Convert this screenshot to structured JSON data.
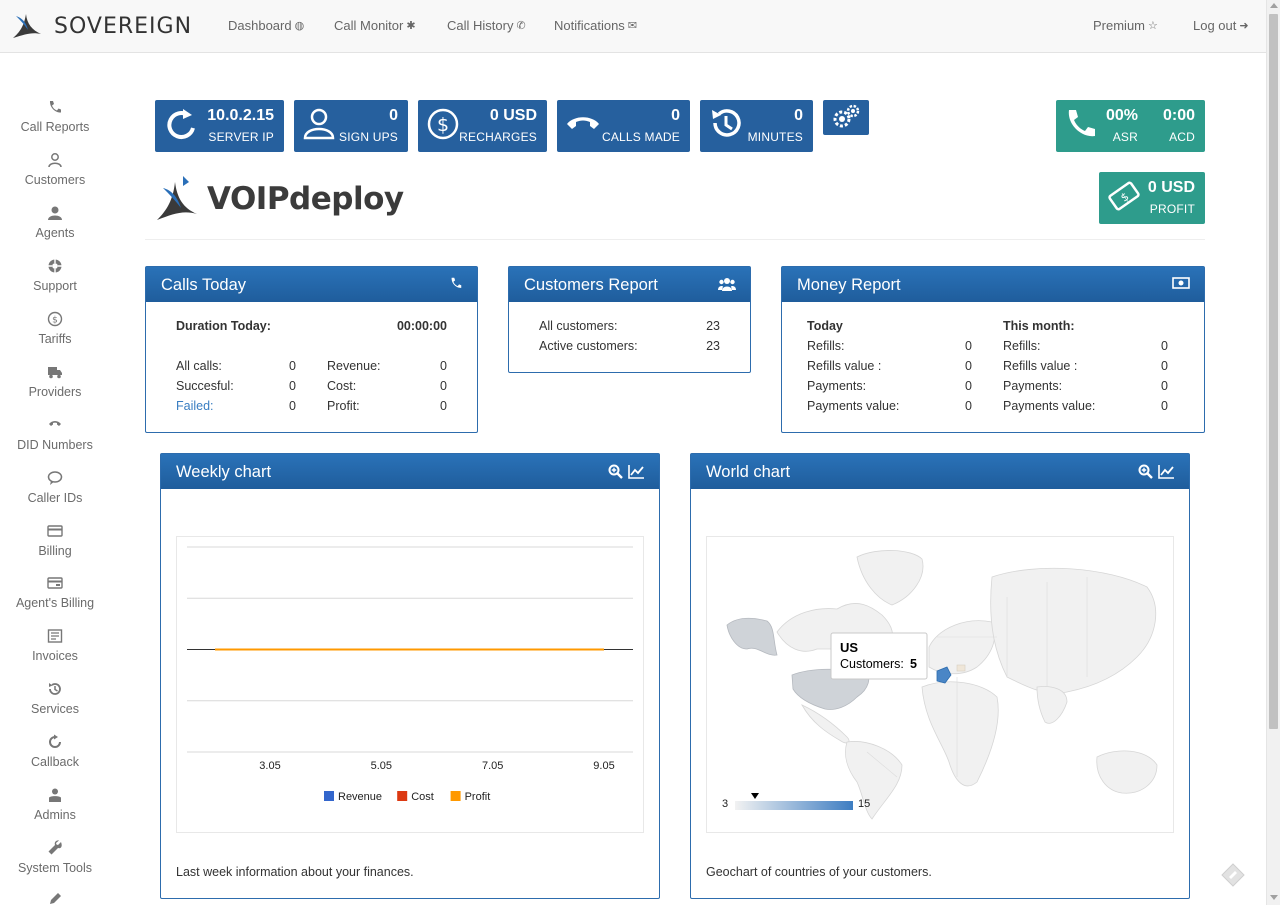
{
  "brand": {
    "name": "SOVEREIGN"
  },
  "nav": {
    "dashboard": "Dashboard",
    "call_monitor": "Call Monitor",
    "call_history": "Call History",
    "notifications": "Notifications",
    "premium": "Premium",
    "logout": "Log out"
  },
  "sidebar": {
    "items": [
      {
        "label": "Call Reports",
        "icon": "phone-icon"
      },
      {
        "label": "Customers",
        "icon": "user-outline-icon"
      },
      {
        "label": "Agents",
        "icon": "agent-icon"
      },
      {
        "label": "Support",
        "icon": "lifebuoy-icon"
      },
      {
        "label": "Tariffs",
        "icon": "dollar-circle-icon"
      },
      {
        "label": "Providers",
        "icon": "truck-icon"
      },
      {
        "label": "DID Numbers",
        "icon": "phone-handset-icon"
      },
      {
        "label": "Caller IDs",
        "icon": "speech-bubble-icon"
      },
      {
        "label": "Billing",
        "icon": "credit-card-icon"
      },
      {
        "label": "Agent's Billing",
        "icon": "agent-card-icon"
      },
      {
        "label": "Invoices",
        "icon": "invoice-icon"
      },
      {
        "label": "Services",
        "icon": "history-icon"
      },
      {
        "label": "Callback",
        "icon": "refresh-icon"
      },
      {
        "label": "Admins",
        "icon": "admin-icon"
      },
      {
        "label": "System Tools",
        "icon": "wrench-icon"
      }
    ]
  },
  "tiles": {
    "server_ip": {
      "value": "10.0.2.15",
      "label": "SERVER IP"
    },
    "sign_ups": {
      "value": "0",
      "label": "SIGN UPS"
    },
    "recharges": {
      "value": "0 USD",
      "label": "RECHARGES"
    },
    "calls_made": {
      "value": "0",
      "label": "CALLS MADE"
    },
    "minutes": {
      "value": "0",
      "label": "MINUTES"
    },
    "asr": {
      "value": "00%",
      "label": "ASR"
    },
    "acd": {
      "value": "0:00",
      "label": "ACD"
    },
    "profit": {
      "value": "0 USD",
      "label": "PROFIT"
    }
  },
  "logo": {
    "text": "VOIPdeploy"
  },
  "calls_today": {
    "title": "Calls Today",
    "duration_label": "Duration Today:",
    "duration_value": "00:00:00",
    "all_calls_label": "All calls:",
    "all_calls": "0",
    "successful_label": "Succesful:",
    "successful": "0",
    "failed_label": "Failed:",
    "failed": "0",
    "revenue_label": "Revenue:",
    "revenue": "0",
    "cost_label": "Cost:",
    "cost": "0",
    "profit_label": "Profit:",
    "profit": "0"
  },
  "customers_report": {
    "title": "Customers Report",
    "all_label": "All customers:",
    "all": "23",
    "active_label": "Active customers:",
    "active": "23"
  },
  "money_report": {
    "title": "Money Report",
    "today_heading": "Today",
    "month_heading": "This month:",
    "today": [
      {
        "label": "Refills:",
        "value": "0"
      },
      {
        "label": "Refills value :",
        "value": "0"
      },
      {
        "label": "Payments:",
        "value": "0"
      },
      {
        "label": "Payments value:",
        "value": "0"
      }
    ],
    "month": [
      {
        "label": "Refills:",
        "value": "0"
      },
      {
        "label": "Refills value :",
        "value": "0"
      },
      {
        "label": "Payments:",
        "value": "0"
      },
      {
        "label": "Payments value:",
        "value": "0"
      }
    ]
  },
  "weekly_chart": {
    "title": "Weekly chart",
    "caption": "Last week information about your finances."
  },
  "world_chart": {
    "title": "World chart",
    "caption": "Geochart of countries of your customers.",
    "tooltip_country": "US",
    "tooltip_label": "Customers:",
    "tooltip_value": "5",
    "scale_min": "3",
    "scale_max": "15"
  },
  "colors": {
    "tile_blue": "#26609e",
    "tile_teal": "#2e9c8c",
    "revenue": "#3366cc",
    "cost": "#dc3912",
    "profit": "#ff9900"
  },
  "chart_data": [
    {
      "type": "line",
      "x": [
        "3.05",
        "5.05",
        "7.05",
        "9.05"
      ],
      "series": [
        {
          "name": "Revenue",
          "values": [
            0,
            0,
            0,
            0
          ]
        },
        {
          "name": "Cost",
          "values": [
            0,
            0,
            0,
            0
          ]
        },
        {
          "name": "Profit",
          "values": [
            0,
            0,
            0,
            0
          ]
        }
      ],
      "grid": true,
      "legend": "bottom"
    }
  ]
}
